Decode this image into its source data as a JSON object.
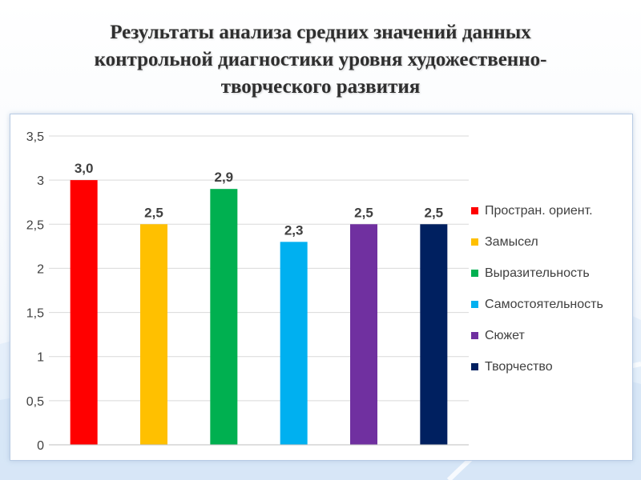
{
  "title": "Результаты анализа средних значений данных\nконтрольной диагностики уровня художественно-\nтворческого развития",
  "chart_data": {
    "type": "bar",
    "title": "",
    "xlabel": "",
    "ylabel": "",
    "ylim": [
      0,
      3.5
    ],
    "yticks": [
      "0",
      "0,5",
      "1",
      "1,5",
      "2",
      "2,5",
      "3",
      "3,5"
    ],
    "grid": true,
    "legend_position": "right",
    "series": [
      {
        "name": "Простран. ориент.",
        "value": 3.0,
        "label": "3,0",
        "color": "#ff0000"
      },
      {
        "name": "Замысел",
        "value": 2.5,
        "label": "2,5",
        "color": "#ffc000"
      },
      {
        "name": "Выразительность",
        "value": 2.9,
        "label": "2,9",
        "color": "#00b050"
      },
      {
        "name": "Самостоятельность",
        "value": 2.3,
        "label": "2,3",
        "color": "#00b0f0"
      },
      {
        "name": "Сюжет",
        "value": 2.5,
        "label": "2,5",
        "color": "#7030a0"
      },
      {
        "name": "Творчество",
        "value": 2.5,
        "label": "2,5",
        "color": "#002060"
      }
    ]
  }
}
